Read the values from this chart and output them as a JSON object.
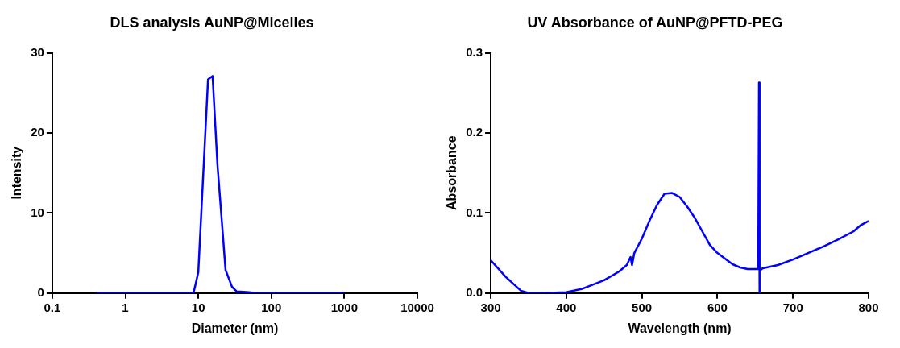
{
  "chart_data": [
    {
      "type": "line",
      "title": "DLS analysis AuNP@Micelles",
      "xlabel": "Diameter (nm)",
      "ylabel": "Intensity",
      "log": "x",
      "grid": false,
      "legend": false,
      "marker": "none",
      "color": "#0000ff",
      "x": [
        0.4,
        1,
        3,
        8.6,
        10,
        13.6,
        15.7,
        18.3,
        21.4,
        23.6,
        28.9,
        33.6,
        50,
        60,
        1000
      ],
      "values": [
        0,
        0,
        0,
        0,
        2.6,
        26.7,
        27.1,
        16,
        8,
        2.9,
        0.8,
        0.2,
        0.1,
        0,
        0
      ],
      "xlim": [
        0.1,
        10000
      ],
      "xticks": [
        0.1,
        1,
        10,
        100,
        1000,
        10000
      ],
      "ylim": [
        0,
        30
      ],
      "yticks": [
        0,
        10,
        20,
        30
      ]
    },
    {
      "type": "line",
      "title": "UV Absorbance of AuNP@PFTD-PEG",
      "xlabel": "Wavelength (nm)",
      "ylabel": "Absorbance",
      "grid": false,
      "legend": false,
      "marker": "none",
      "color": "#0000ff",
      "x": [
        300,
        320,
        340,
        350,
        370,
        400,
        420,
        450,
        470,
        480,
        485,
        487,
        490,
        500,
        510,
        520,
        530,
        540,
        550,
        560,
        570,
        580,
        590,
        600,
        610,
        620,
        630,
        640,
        650,
        654,
        655,
        655.5,
        656,
        660,
        680,
        700,
        720,
        740,
        760,
        780,
        790,
        800
      ],
      "values": [
        0.041,
        0.02,
        0.003,
        0,
        0,
        0.001,
        0.005,
        0.016,
        0.027,
        0.035,
        0.045,
        0.035,
        0.05,
        0.068,
        0.09,
        0.11,
        0.124,
        0.125,
        0.12,
        0.108,
        0.094,
        0.077,
        0.06,
        0.05,
        0.043,
        0.036,
        0.032,
        0.03,
        0.03,
        0.03,
        0.263,
        0,
        0.028,
        0.031,
        0.035,
        0.042,
        0.05,
        0.058,
        0.067,
        0.077,
        0.085,
        0.09
      ],
      "xlim": [
        300,
        800
      ],
      "xticks": [
        300,
        400,
        500,
        600,
        700,
        800
      ],
      "ylim": [
        0,
        0.3
      ],
      "yticks": [
        {
          "value": 0,
          "label": "0.0"
        },
        0.1,
        0.2,
        0.3
      ]
    }
  ]
}
